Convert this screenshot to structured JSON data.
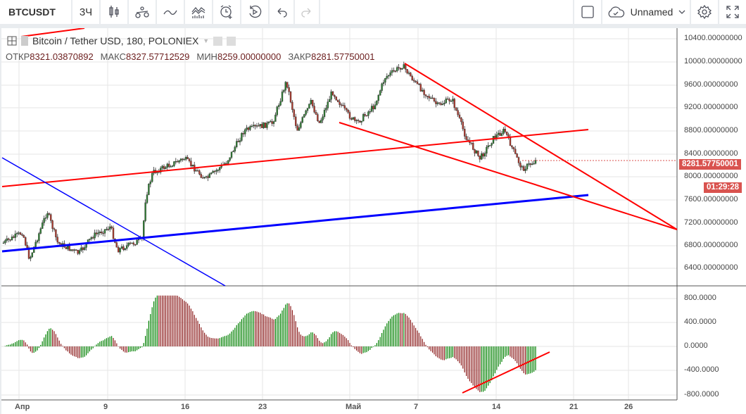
{
  "toolbar": {
    "symbol": "BTCUSDT",
    "interval": "3Ч",
    "layout_name": "Unnamed",
    "icons": [
      "candles-icon",
      "compare-icon",
      "indicators-icon",
      "financials-icon",
      "alert-icon",
      "replay-icon",
      "undo-icon",
      "redo-icon",
      "square-icon",
      "cloud-save-icon",
      "chevron-down-icon",
      "gear-icon",
      "fullscreen-icon"
    ]
  },
  "legend": {
    "title": "Bitcoin / Tether USD, 180, POLONIEX",
    "open_label": "ОТКР",
    "open": "8321.03870892",
    "high_label": "МАКС",
    "high": "8327.57712529",
    "low_label": "МИН",
    "low": "8259.00000000",
    "close_label": "ЗАКР",
    "close": "8281.57750001"
  },
  "price_axis": [
    "10400.00000000",
    "10000.00000000",
    "9600.00000000",
    "9200.00000000",
    "8800.00000000",
    "8400.00000000",
    "8000.00000000",
    "7600.00000000",
    "7200.00000000",
    "6800.00000000",
    "6400.00000000"
  ],
  "last_price": "8281.57750001",
  "countdown": "01:29:28",
  "osc_axis": [
    "800.0000",
    "400.0000",
    "0.0000",
    "-400.0000",
    "-800.0000"
  ],
  "time_axis": [
    "Апр",
    "9",
    "16",
    "23",
    "Май",
    "7",
    "14",
    "21",
    "26"
  ],
  "colors": {
    "up": "#008000",
    "down": "#8b1a1a",
    "trend_red": "#ff0000",
    "trend_blue": "#0000ff",
    "price_tag": "#d9534f"
  }
}
